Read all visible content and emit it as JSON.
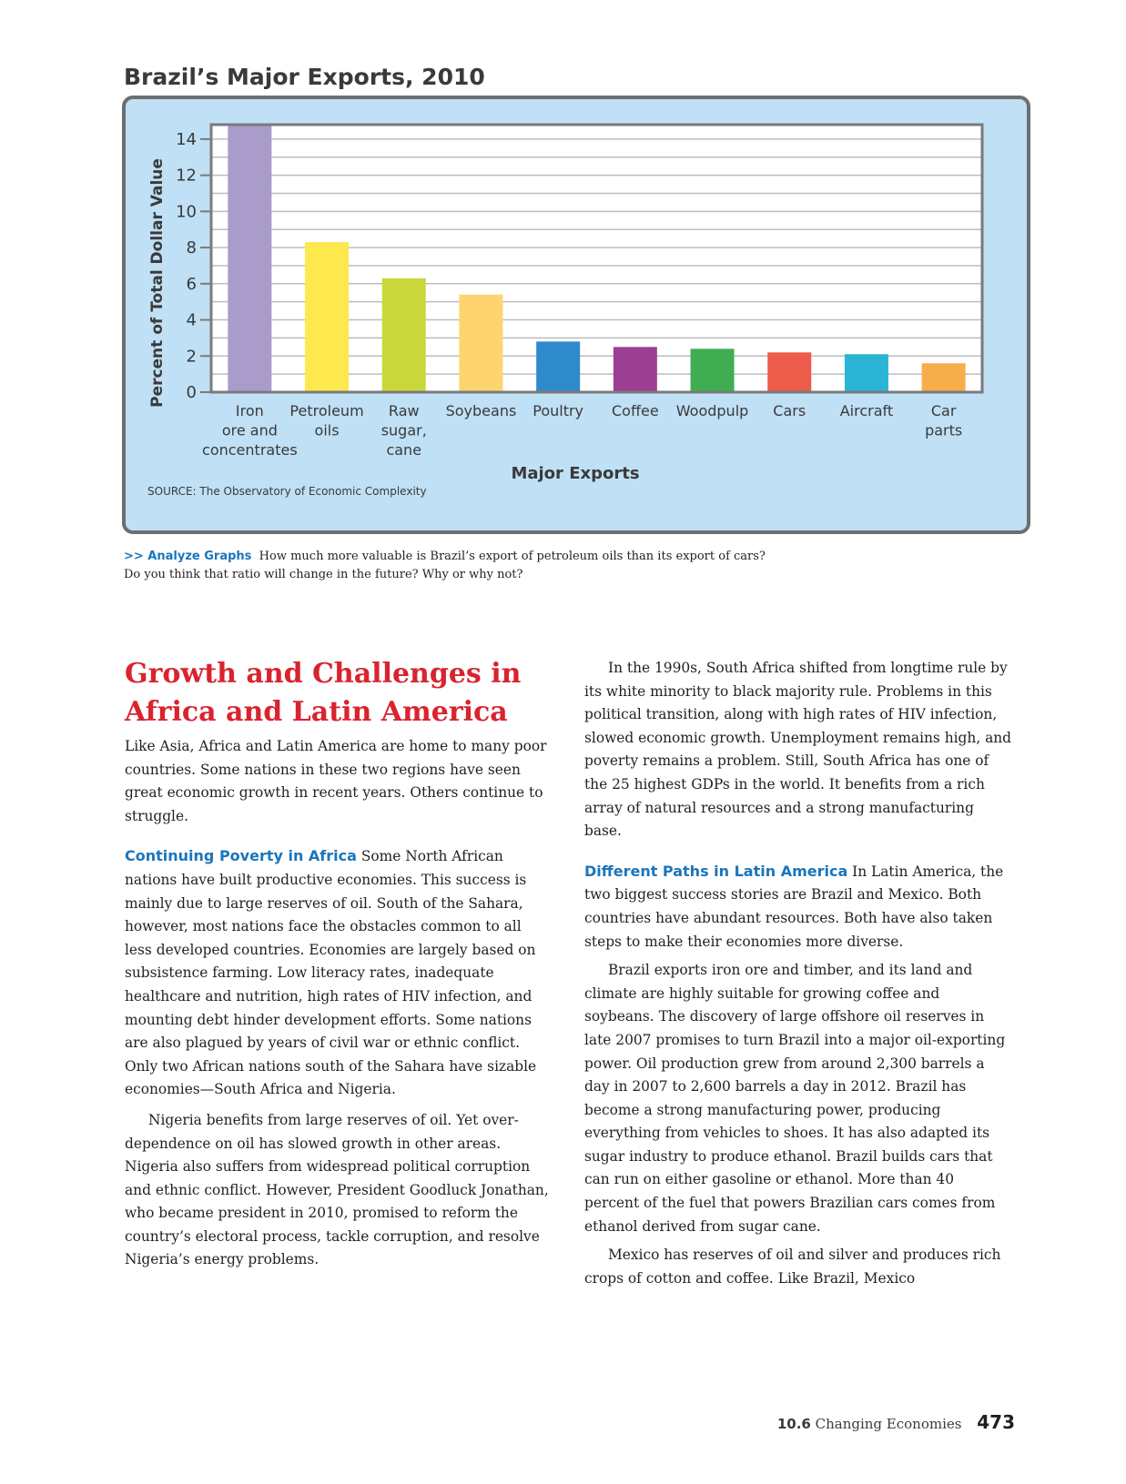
{
  "chart_data": {
    "type": "bar",
    "title": "Brazil’s Major Exports, 2010",
    "ylabel": "Percent of Total Dollar Value",
    "xlabel": "Major Exports",
    "source": "SOURCE: The Observatory of Economic Complexity",
    "ylim": [
      0,
      14.8
    ],
    "yticks": [
      "0",
      "2",
      "4",
      "6",
      "8",
      "10",
      "12",
      "14"
    ],
    "categories": [
      [
        "Iron",
        "ore and",
        "concentrates"
      ],
      [
        "Petroleum",
        "oils"
      ],
      [
        "Raw",
        "sugar,",
        "cane"
      ],
      [
        "Soybeans"
      ],
      [
        "Poultry"
      ],
      [
        "Coffee"
      ],
      [
        "Woodpulp"
      ],
      [
        "Cars"
      ],
      [
        "Aircraft"
      ],
      [
        "Car",
        "parts"
      ]
    ],
    "values": [
      14.8,
      8.3,
      6.3,
      5.4,
      2.8,
      2.5,
      2.4,
      2.2,
      2.1,
      1.6
    ],
    "colors": [
      "#a99bca",
      "#fde84e",
      "#c9d73d",
      "#fdd46f",
      "#2f8acb",
      "#9c3f92",
      "#3fae52",
      "#ee5c4b",
      "#2ab5d6",
      "#f6ae4b"
    ],
    "grid": true
  },
  "analyze": {
    "lead": ">> Analyze Graphs",
    "text": "How much more valuable is Brazil’s export of petroleum oils than its export of cars? Do you think that ratio will change in the future? Why or why not?"
  },
  "left_column": {
    "heading": "Growth and Challenges in Africa and Latin America",
    "intro": "Like Asia, Africa and Latin America are home to many poor countries. Some nations in these two regions have seen great economic growth in recent years. Others continue to struggle.",
    "sub1": "Continuing Poverty in Africa",
    "p1": "Some North African nations have built productive economies. This success is mainly due to large reserves of oil. South of the Sahara, however, most nations face the obstacles common to all less developed countries. Economies are largely based on subsistence farming. Low literacy rates, inadequate healthcare and nutrition, high rates of HIV infection, and mounting debt hinder development efforts. Some nations are also plagued by years of civil war or ethnic conflict. Only two African nations south of the Sahara have sizable economies—South Africa and Nigeria.",
    "p2": "Nigeria benefits from large reserves of oil. Yet over-dependence on oil has slowed growth in other areas. Nigeria also suffers from widespread political corruption and ethnic conflict. However, President Goodluck Jonathan, who became president in 2010, promised to reform the country’s electoral process, tackle corruption, and resolve Nigeria’s energy problems."
  },
  "right_column": {
    "p1": "In the 1990s, South Africa shifted from longtime rule by its white minority to black majority rule. Problems in this political transition, along with high rates of HIV infection, slowed economic growth. Unemployment remains high, and poverty remains a problem. Still, South Africa has one of the 25 highest GDPs in the world. It benefits from a rich array of natural resources and a strong manufacturing base.",
    "sub2": "Different Paths in Latin America",
    "p2": "In Latin America, the two biggest success stories are Brazil and Mexico. Both countries have abundant resources. Both have also taken steps to make their economies more diverse.",
    "p3": "Brazil exports iron ore and timber, and its land and climate are highly suitable for growing coffee and soybeans. The discovery of large offshore oil reserves in late 2007 promises to turn Brazil into a major oil-exporting power. Oil production grew from around 2,300 barrels a day in 2007 to 2,600 barrels a day in 2012. Brazil has become a strong manufacturing power, producing everything from vehicles to shoes. It has also adapted its sugar industry to produce ethanol. Brazil builds cars that can run on either gasoline or ethanol. More than 40 percent of the fuel that powers Brazilian cars comes from ethanol derived from sugar cane.",
    "p4": "Mexico has reserves of oil and silver and produces rich crops of cotton and coffee. Like Brazil, Mexico"
  },
  "footer": {
    "section_num": "10.6",
    "section_title": "Changing Economies",
    "page": "473"
  }
}
